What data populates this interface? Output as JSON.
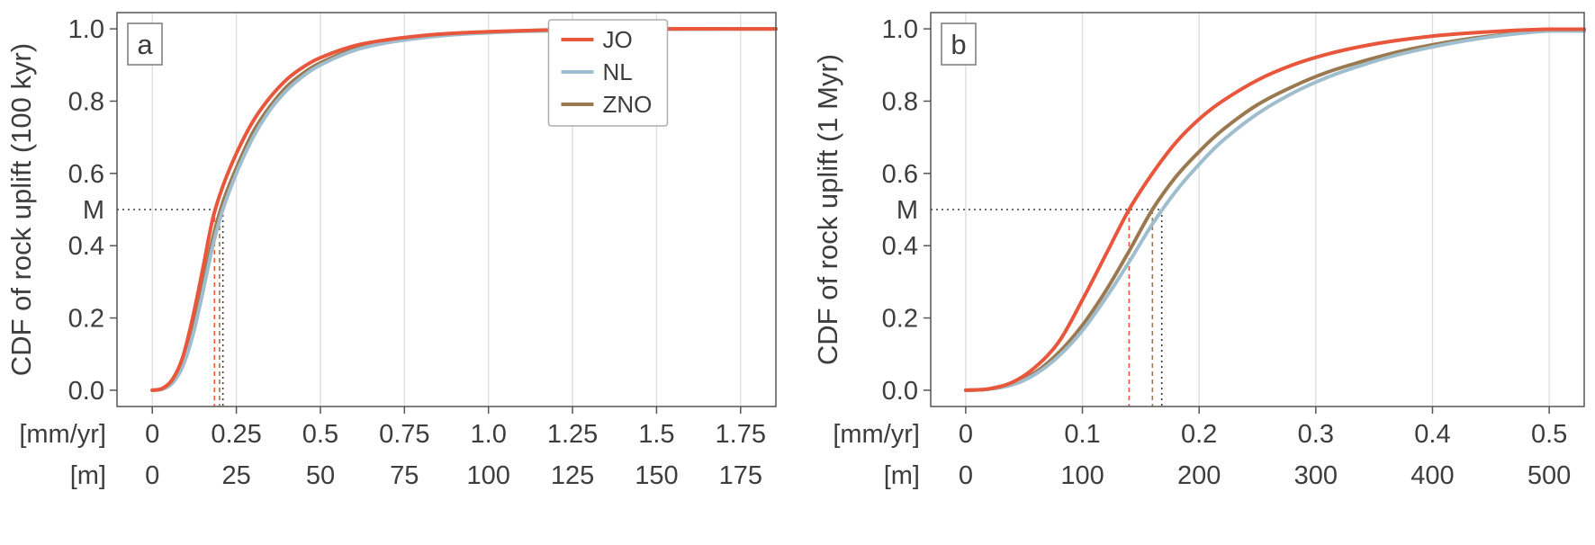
{
  "page": {
    "background": "#ffffff"
  },
  "theme": {
    "text_color": "#3d3d3d",
    "spine_color": "#555555",
    "grid_color": "#dddddd",
    "median_line_color": "#3a3a3a",
    "legend_border": "#adadad",
    "background": "#ffffff",
    "series_colors": {
      "JO": "#e8563c",
      "NL": "#9fbecd",
      "ZNO": "#9b7950"
    }
  },
  "chart_data": [
    {
      "type": "line",
      "panel_label": "a",
      "ylabel": "CDF of rock uplift (100 kyr)",
      "xlim": [
        0,
        1.75
      ],
      "ylim": [
        0,
        1
      ],
      "xticks": [
        0,
        0.25,
        0.5,
        0.75,
        1.0,
        1.25,
        1.5,
        1.75
      ],
      "xtick_rows": [
        {
          "unit": "[mm/yr]",
          "labels": [
            "0",
            "0.25",
            "0.5",
            "0.75",
            "1.0",
            "1.25",
            "1.5",
            "1.75"
          ]
        },
        {
          "unit": "[m]",
          "labels": [
            "0",
            "25",
            "50",
            "75",
            "100",
            "125",
            "150",
            "175"
          ]
        }
      ],
      "yticks": [
        0,
        0.2,
        0.4,
        0.6,
        0.8,
        1.0
      ],
      "ytick_labels": [
        "0.0",
        "0.2",
        "0.4",
        "0.6",
        "0.8",
        "1.0"
      ],
      "grid": "vertical",
      "median": {
        "label": "M",
        "y": 0.5,
        "values": [
          {
            "series": "JO",
            "x": 0.185
          },
          {
            "series": "ZNO",
            "x": 0.2
          },
          {
            "series": "NL",
            "x": 0.21
          }
        ]
      },
      "legend": {
        "show": true,
        "position": "upper-right",
        "entries": [
          "JO",
          "NL",
          "ZNO"
        ]
      },
      "series": [
        {
          "name": "JO",
          "color": "#e8563c",
          "x": [
            0,
            0.03,
            0.06,
            0.09,
            0.12,
            0.15,
            0.18,
            0.21,
            0.25,
            0.3,
            0.35,
            0.4,
            0.45,
            0.5,
            0.6,
            0.7,
            0.8,
            0.9,
            1.0,
            1.1,
            1.25,
            1.5,
            1.75
          ],
          "y": [
            0,
            0.005,
            0.03,
            0.09,
            0.2,
            0.335,
            0.475,
            0.565,
            0.655,
            0.745,
            0.81,
            0.86,
            0.895,
            0.92,
            0.953,
            0.97,
            0.981,
            0.988,
            0.992,
            0.995,
            0.998,
            1.0,
            1.0
          ]
        },
        {
          "name": "NL",
          "color": "#9fbecd",
          "x": [
            0,
            0.03,
            0.06,
            0.09,
            0.12,
            0.15,
            0.18,
            0.21,
            0.25,
            0.3,
            0.35,
            0.4,
            0.45,
            0.5,
            0.6,
            0.7,
            0.8,
            0.9,
            1.0,
            1.1,
            1.25,
            1.5,
            1.75
          ],
          "y": [
            0,
            0.003,
            0.02,
            0.065,
            0.15,
            0.27,
            0.4,
            0.5,
            0.6,
            0.7,
            0.775,
            0.83,
            0.87,
            0.9,
            0.94,
            0.962,
            0.975,
            0.984,
            0.989,
            0.993,
            0.996,
            0.999,
            1.0
          ]
        },
        {
          "name": "ZNO",
          "color": "#9b7950",
          "x": [
            0,
            0.03,
            0.06,
            0.09,
            0.12,
            0.15,
            0.18,
            0.21,
            0.25,
            0.3,
            0.35,
            0.4,
            0.45,
            0.5,
            0.6,
            0.7,
            0.8,
            0.9,
            1.0,
            1.1,
            1.25,
            1.5,
            1.75
          ],
          "y": [
            0,
            0.004,
            0.024,
            0.075,
            0.165,
            0.29,
            0.42,
            0.52,
            0.615,
            0.715,
            0.785,
            0.84,
            0.878,
            0.906,
            0.944,
            0.965,
            0.977,
            0.985,
            0.99,
            0.994,
            0.997,
            0.999,
            1.0
          ]
        }
      ]
    },
    {
      "type": "line",
      "panel_label": "b",
      "ylabel": "CDF of rock uplift (1 Myr)",
      "xlim": [
        0,
        0.5
      ],
      "ylim": [
        0,
        1
      ],
      "xticks": [
        0,
        0.1,
        0.2,
        0.3,
        0.4,
        0.5
      ],
      "xtick_rows": [
        {
          "unit": "[mm/yr]",
          "labels": [
            "0",
            "0.1",
            "0.2",
            "0.3",
            "0.4",
            "0.5"
          ]
        },
        {
          "unit": "[m]",
          "labels": [
            "0",
            "100",
            "200",
            "300",
            "400",
            "500"
          ]
        }
      ],
      "yticks": [
        0,
        0.2,
        0.4,
        0.6,
        0.8,
        1.0
      ],
      "ytick_labels": [
        "0.0",
        "0.2",
        "0.4",
        "0.6",
        "0.8",
        "1.0"
      ],
      "grid": "vertical",
      "median": {
        "label": "M",
        "y": 0.5,
        "values": [
          {
            "series": "JO",
            "x": 0.14
          },
          {
            "series": "ZNO",
            "x": 0.16
          },
          {
            "series": "NL",
            "x": 0.168
          }
        ]
      },
      "legend": {
        "show": false,
        "position": "",
        "entries": []
      },
      "series": [
        {
          "name": "JO",
          "color": "#e8563c",
          "x": [
            0,
            0.02,
            0.04,
            0.06,
            0.08,
            0.1,
            0.12,
            0.14,
            0.16,
            0.18,
            0.2,
            0.22,
            0.25,
            0.28,
            0.31,
            0.34,
            0.37,
            0.4,
            0.43,
            0.46,
            0.48,
            0.5
          ],
          "y": [
            0,
            0.004,
            0.022,
            0.065,
            0.135,
            0.25,
            0.375,
            0.5,
            0.6,
            0.685,
            0.75,
            0.8,
            0.858,
            0.9,
            0.93,
            0.952,
            0.968,
            0.98,
            0.988,
            0.994,
            0.997,
            0.999
          ]
        },
        {
          "name": "NL",
          "color": "#9fbecd",
          "x": [
            0,
            0.02,
            0.04,
            0.06,
            0.08,
            0.1,
            0.12,
            0.14,
            0.16,
            0.18,
            0.2,
            0.22,
            0.25,
            0.28,
            0.31,
            0.34,
            0.37,
            0.4,
            0.43,
            0.46,
            0.48,
            0.5
          ],
          "y": [
            0,
            0.003,
            0.015,
            0.045,
            0.095,
            0.165,
            0.255,
            0.355,
            0.46,
            0.55,
            0.625,
            0.69,
            0.765,
            0.822,
            0.866,
            0.9,
            0.928,
            0.95,
            0.968,
            0.982,
            0.989,
            0.994
          ]
        },
        {
          "name": "ZNO",
          "color": "#9b7950",
          "x": [
            0,
            0.02,
            0.04,
            0.06,
            0.08,
            0.1,
            0.12,
            0.14,
            0.16,
            0.18,
            0.2,
            0.22,
            0.25,
            0.28,
            0.31,
            0.34,
            0.37,
            0.4,
            0.43,
            0.46,
            0.48,
            0.5
          ],
          "y": [
            0,
            0.003,
            0.017,
            0.05,
            0.105,
            0.18,
            0.275,
            0.385,
            0.5,
            0.59,
            0.66,
            0.72,
            0.79,
            0.84,
            0.88,
            0.91,
            0.936,
            0.956,
            0.972,
            0.984,
            0.991,
            0.995
          ]
        }
      ]
    }
  ]
}
